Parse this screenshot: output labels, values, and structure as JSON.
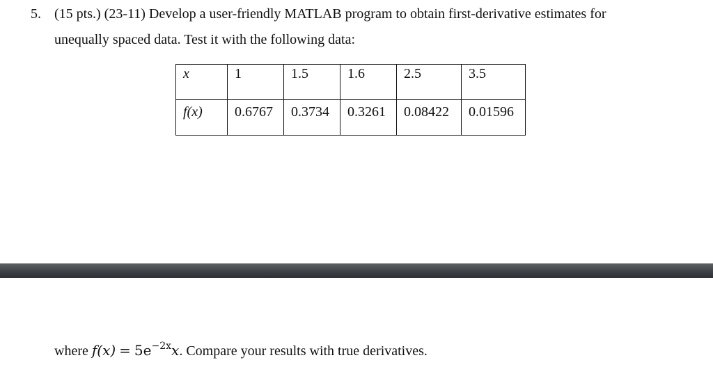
{
  "problem": {
    "number": "5.",
    "text_line1": "(15 pts.) (23-11) Develop a user-friendly MATLAB program to obtain first-derivative estimates for",
    "text_line2": "unequally spaced data. Test it with the following data:"
  },
  "table": {
    "row_x": {
      "label": "x",
      "values": [
        "1",
        "1.5",
        "1.6",
        "2.5",
        "3.5"
      ]
    },
    "row_fx": {
      "label": "f(x)",
      "values": [
        "0.6767",
        "0.3734",
        "0.3261",
        "0.08422",
        "0.01596"
      ]
    }
  },
  "footer": {
    "where": "where",
    "fx_lhs": "f(x)",
    "equals": "=",
    "coef": "5e",
    "exponent": "−2x",
    "var": "x",
    "rest": ". Compare your results with true derivatives."
  },
  "colors": {
    "divider": "#3e4146",
    "text": "#111111"
  }
}
